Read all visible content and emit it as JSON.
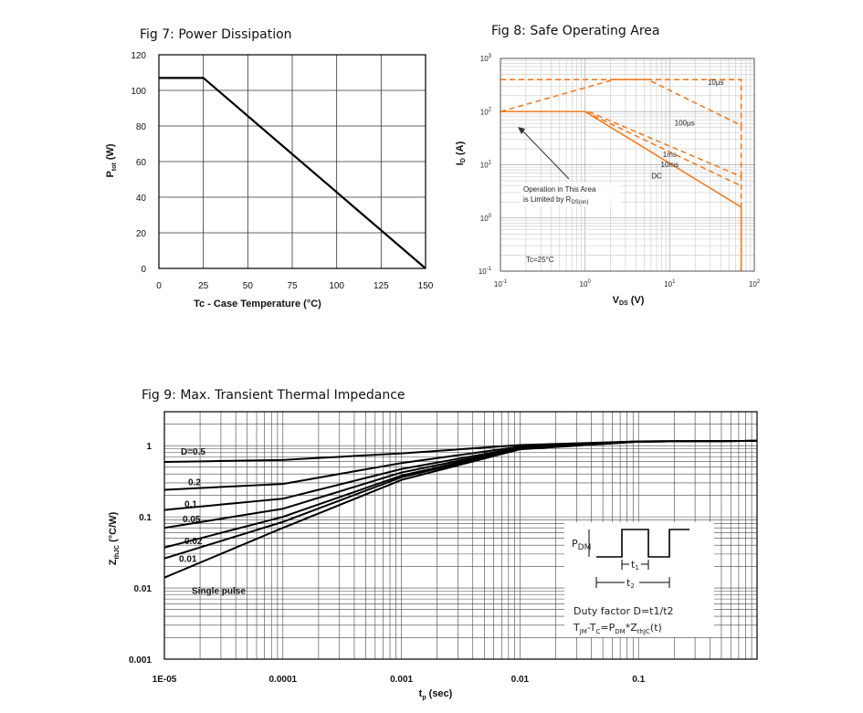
{
  "chart_data": [
    {
      "id": "fig7",
      "type": "line",
      "title": "Fig 7:  Power Dissipation",
      "xlabel": "Tc - Case Temperature (°C)",
      "ylabel": "P<sub>tot</sub> (W)",
      "ylabel_main": "P",
      "ylabel_sub": "tot",
      "ylabel_unit": " (W)",
      "xlim": [
        0,
        150
      ],
      "ylim": [
        0,
        120
      ],
      "xticks": [
        "0",
        "25",
        "50",
        "75",
        "100",
        "125",
        "150"
      ],
      "yticks": [
        "0",
        "20",
        "40",
        "60",
        "80",
        "100",
        "120"
      ],
      "xtick_values": [
        0,
        25,
        50,
        75,
        100,
        125,
        150
      ],
      "ytick_values": [
        0,
        20,
        40,
        60,
        80,
        100,
        120
      ],
      "grid": true,
      "series": [
        {
          "name": "Ptot",
          "x": [
            0,
            25,
            150
          ],
          "y": [
            107,
            107,
            0
          ]
        }
      ]
    },
    {
      "id": "fig8",
      "type": "line",
      "title": "Fig 8:  Safe Operating Area",
      "xlabel_main": "V",
      "xlabel_sub": "DS",
      "xlabel_unit": " (V)",
      "ylabel_main": "I",
      "ylabel_sub": "D",
      "ylabel_unit": " (A)",
      "xscale": "log",
      "yscale": "log",
      "xlim": [
        0.1,
        100
      ],
      "ylim": [
        0.1,
        1000
      ],
      "xticks": [
        {
          "base": "10",
          "exp": "-1",
          "value": 0.1
        },
        {
          "base": "10",
          "exp": "0",
          "value": 1
        },
        {
          "base": "10",
          "exp": "1",
          "value": 10
        },
        {
          "base": "10",
          "exp": "2",
          "value": 100
        }
      ],
      "yticks": [
        {
          "base": "10",
          "exp": "-1",
          "value": 0.1
        },
        {
          "base": "10",
          "exp": "0",
          "value": 1
        },
        {
          "base": "10",
          "exp": "1",
          "value": 10
        },
        {
          "base": "10",
          "exp": "2",
          "value": 100
        },
        {
          "base": "10",
          "exp": "3",
          "value": 1000
        }
      ],
      "grid": true,
      "color": "#F47C20",
      "annotation_line1": "Operation in This Area",
      "annotation_line2": "is Limited by R",
      "annotation_sub": "DS(on)",
      "condition": "Tc=25°C",
      "series": [
        {
          "name": "10µs",
          "style": "dashed",
          "x": [
            0.1,
            2.2,
            6,
            70,
            70
          ],
          "y": [
            400,
            400,
            400,
            400,
            50
          ]
        },
        {
          "name": "100µs",
          "style": "dashed",
          "x": [
            0.1,
            2.2,
            5.5,
            70,
            70
          ],
          "y": [
            100,
            400,
            400,
            55,
            5
          ]
        },
        {
          "name": "1ms",
          "style": "dashed",
          "x": [
            1.1,
            70,
            70
          ],
          "y": [
            100,
            6,
            0.1
          ]
        },
        {
          "name": "10ms",
          "style": "dashed",
          "x": [
            1.0,
            70
          ],
          "y": [
            100,
            4
          ]
        },
        {
          "name": "DC",
          "style": "solid",
          "x": [
            0.1,
            1.0,
            70,
            70
          ],
          "y": [
            100,
            100,
            1.6,
            0.1
          ]
        }
      ],
      "labels": [
        {
          "text": "10µs",
          "x": 35,
          "y": 320
        },
        {
          "text": "100µs",
          "x": 15,
          "y": 55
        },
        {
          "text": "1ms",
          "x": 10,
          "y": 14
        },
        {
          "text": "10ms",
          "x": 10,
          "y": 9
        },
        {
          "text": "DC",
          "x": 7,
          "y": 5.5
        }
      ]
    },
    {
      "id": "fig9",
      "type": "line",
      "title": "Fig 9:  Max. Transient Thermal Impedance",
      "xlabel_main": "t",
      "xlabel_sub": "p",
      "xlabel_unit": " (sec)",
      "ylabel_main": "Z",
      "ylabel_sub": "thJC",
      "ylabel_unit": " (°C/W)",
      "xscale": "log",
      "yscale": "log",
      "xlim": [
        1e-05,
        1
      ],
      "ylim": [
        0.001,
        3
      ],
      "xticks": [
        {
          "label": "1E-05",
          "value": 1e-05
        },
        {
          "label": "0.0001",
          "value": 0.0001
        },
        {
          "label": "0.001",
          "value": 0.001
        },
        {
          "label": "0.01",
          "value": 0.01
        },
        {
          "label": "0.1",
          "value": 0.1
        }
      ],
      "yticks": [
        {
          "label": "0.001",
          "value": 0.001
        },
        {
          "label": "0.01",
          "value": 0.01
        },
        {
          "label": "0.1",
          "value": 0.1
        },
        {
          "label": "1",
          "value": 1
        }
      ],
      "grid": true,
      "series": [
        {
          "name": "D=0.5",
          "x": [
            1e-05,
            0.0001,
            0.001,
            0.01,
            0.1,
            1
          ],
          "y": [
            0.59,
            0.63,
            0.78,
            1.02,
            1.15,
            1.17
          ]
        },
        {
          "name": "0.2",
          "x": [
            1e-05,
            0.0001,
            0.001,
            0.01,
            0.1,
            1
          ],
          "y": [
            0.24,
            0.29,
            0.57,
            0.97,
            1.15,
            1.17
          ]
        },
        {
          "name": "0.1",
          "x": [
            1e-05,
            0.0001,
            0.001,
            0.01,
            0.1,
            1
          ],
          "y": [
            0.125,
            0.18,
            0.47,
            0.94,
            1.14,
            1.17
          ]
        },
        {
          "name": "0.05",
          "x": [
            1e-05,
            0.0001,
            0.001,
            0.01,
            0.1,
            1
          ],
          "y": [
            0.07,
            0.13,
            0.42,
            0.92,
            1.14,
            1.17
          ]
        },
        {
          "name": "0.02",
          "x": [
            1e-05,
            0.0001,
            0.001,
            0.01,
            0.1,
            1
          ],
          "y": [
            0.037,
            0.1,
            0.38,
            0.91,
            1.14,
            1.17
          ]
        },
        {
          "name": "0.01",
          "x": [
            1e-05,
            0.0001,
            0.001,
            0.01,
            0.1,
            1
          ],
          "y": [
            0.026,
            0.085,
            0.36,
            0.9,
            1.14,
            1.17
          ]
        },
        {
          "name": "Single pulse",
          "x": [
            1e-05,
            0.0001,
            0.001,
            0.01,
            0.1,
            1
          ],
          "y": [
            0.014,
            0.07,
            0.33,
            0.89,
            1.14,
            1.17
          ]
        }
      ],
      "inset": {
        "pdm_main": "P",
        "pdm_sub": "DM",
        "t1_main": "t",
        "t1_sub": "1",
        "t2_main": "t",
        "t2_sub": "2",
        "duty_text": "Duty factor D=t1/t2",
        "formula_parts": [
          "T",
          "JM",
          "-T",
          "C",
          "=P",
          "DM",
          "*Z",
          "thJC",
          "(t)"
        ]
      }
    }
  ]
}
